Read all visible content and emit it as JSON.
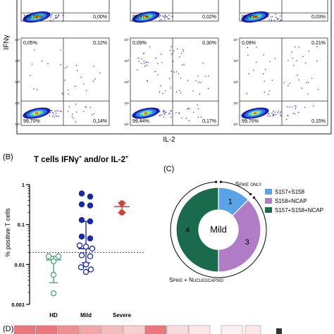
{
  "panel_a": {
    "ylabel": "IFNγ",
    "xlabel": "IL-2",
    "row1_values": [
      {
        "ul": "",
        "ur": "",
        "ll": "100,00%",
        "lr": "0,00%"
      },
      {
        "ul": "",
        "ur": "",
        "ll": "99,97%",
        "lr": "0,02%"
      },
      {
        "ul": "",
        "ur": "",
        "ll": "99,95%",
        "lr": "0,03%"
      }
    ],
    "row2_values": [
      {
        "ul": "0,05%",
        "ur": "0,12%",
        "ll": "99,70%",
        "lr": "0,14%"
      },
      {
        "ul": "0,09%",
        "ur": "0,30%",
        "ll": "99,44%",
        "lr": "0,17%"
      },
      {
        "ul": "0,09%",
        "ur": "0,21%",
        "ll": "99,70%",
        "lr": "0,15%"
      }
    ],
    "axis_tick_labels": [
      "10⁴",
      "10³",
      "10²",
      "10¹",
      "10⁰"
    ]
  },
  "panel_b": {
    "letter": "(B)",
    "title": "T cells IFNγ",
    "title_sup1": "+",
    "title_mid": " and/or IL-2",
    "title_sup2": "+"
  },
  "panel_c": {
    "letter": "(C)",
    "center_label": "Mild",
    "arc_top_label": "Spike only",
    "arc_bottom_label": "Spike + Nucleocapsid",
    "segments": [
      {
        "label": "S157+S158",
        "value": 1,
        "color": "#5ba3e8"
      },
      {
        "label": "S158+NCAP",
        "value": 3,
        "color": "#b07cc6"
      },
      {
        "label": "S157+S158+NCAP",
        "value": 4,
        "color": "#1a6b4c"
      }
    ]
  },
  "panel_d": {
    "letter": "(D)"
  },
  "chart_data": {
    "type": "scatter",
    "title": "T cells IFNγ+ and/or IL-2+",
    "ylabel": "% positive T cells",
    "yscale": "log",
    "ylim": [
      0.001,
      1
    ],
    "yticks": [
      {
        "v": 1,
        "label": "1"
      },
      {
        "v": 0.1,
        "label": "0.1"
      },
      {
        "v": 0.01,
        "label": "0.01"
      },
      {
        "v": 0.001,
        "label": "0.001"
      }
    ],
    "categories": [
      "HD",
      "Mild",
      "Severe"
    ],
    "threshold": 0.02,
    "groups": [
      {
        "category": "HD",
        "color": "#4aa57a",
        "median": 0.013,
        "q1": 0.0035,
        "q3": 0.016,
        "points": [
          {
            "v": 0.016,
            "filled": false
          },
          {
            "v": 0.016,
            "filled": false
          },
          {
            "v": 0.012,
            "filled": false
          },
          {
            "v": 0.0055,
            "filled": false
          },
          {
            "v": 0.0019,
            "filled": false
          }
        ]
      },
      {
        "category": "Mild",
        "color": "#1a2a9c",
        "median": 0.025,
        "q1": 0.011,
        "q3": 0.12,
        "points": [
          {
            "v": 0.6,
            "filled": true
          },
          {
            "v": 0.5,
            "filled": true
          },
          {
            "v": 0.32,
            "filled": true
          },
          {
            "v": 0.3,
            "filled": true
          },
          {
            "v": 0.13,
            "filled": true
          },
          {
            "v": 0.12,
            "filled": true
          },
          {
            "v": 0.05,
            "filled": true
          },
          {
            "v": 0.045,
            "filled": true
          },
          {
            "v": 0.03,
            "filled": false
          },
          {
            "v": 0.028,
            "filled": false
          },
          {
            "v": 0.025,
            "filled": false
          },
          {
            "v": 0.017,
            "filled": false
          },
          {
            "v": 0.016,
            "filled": false
          },
          {
            "v": 0.01,
            "filled": false
          },
          {
            "v": 0.0085,
            "filled": false
          },
          {
            "v": 0.0075,
            "filled": false
          },
          {
            "v": 0.0065,
            "filled": false
          }
        ]
      },
      {
        "category": "Severe",
        "color": "#c9453a",
        "median": 0.28,
        "q1": 0.2,
        "q3": 0.35,
        "points": [
          {
            "v": 0.34,
            "filled": true
          },
          {
            "v": 0.2,
            "filled": true
          }
        ]
      }
    ]
  }
}
